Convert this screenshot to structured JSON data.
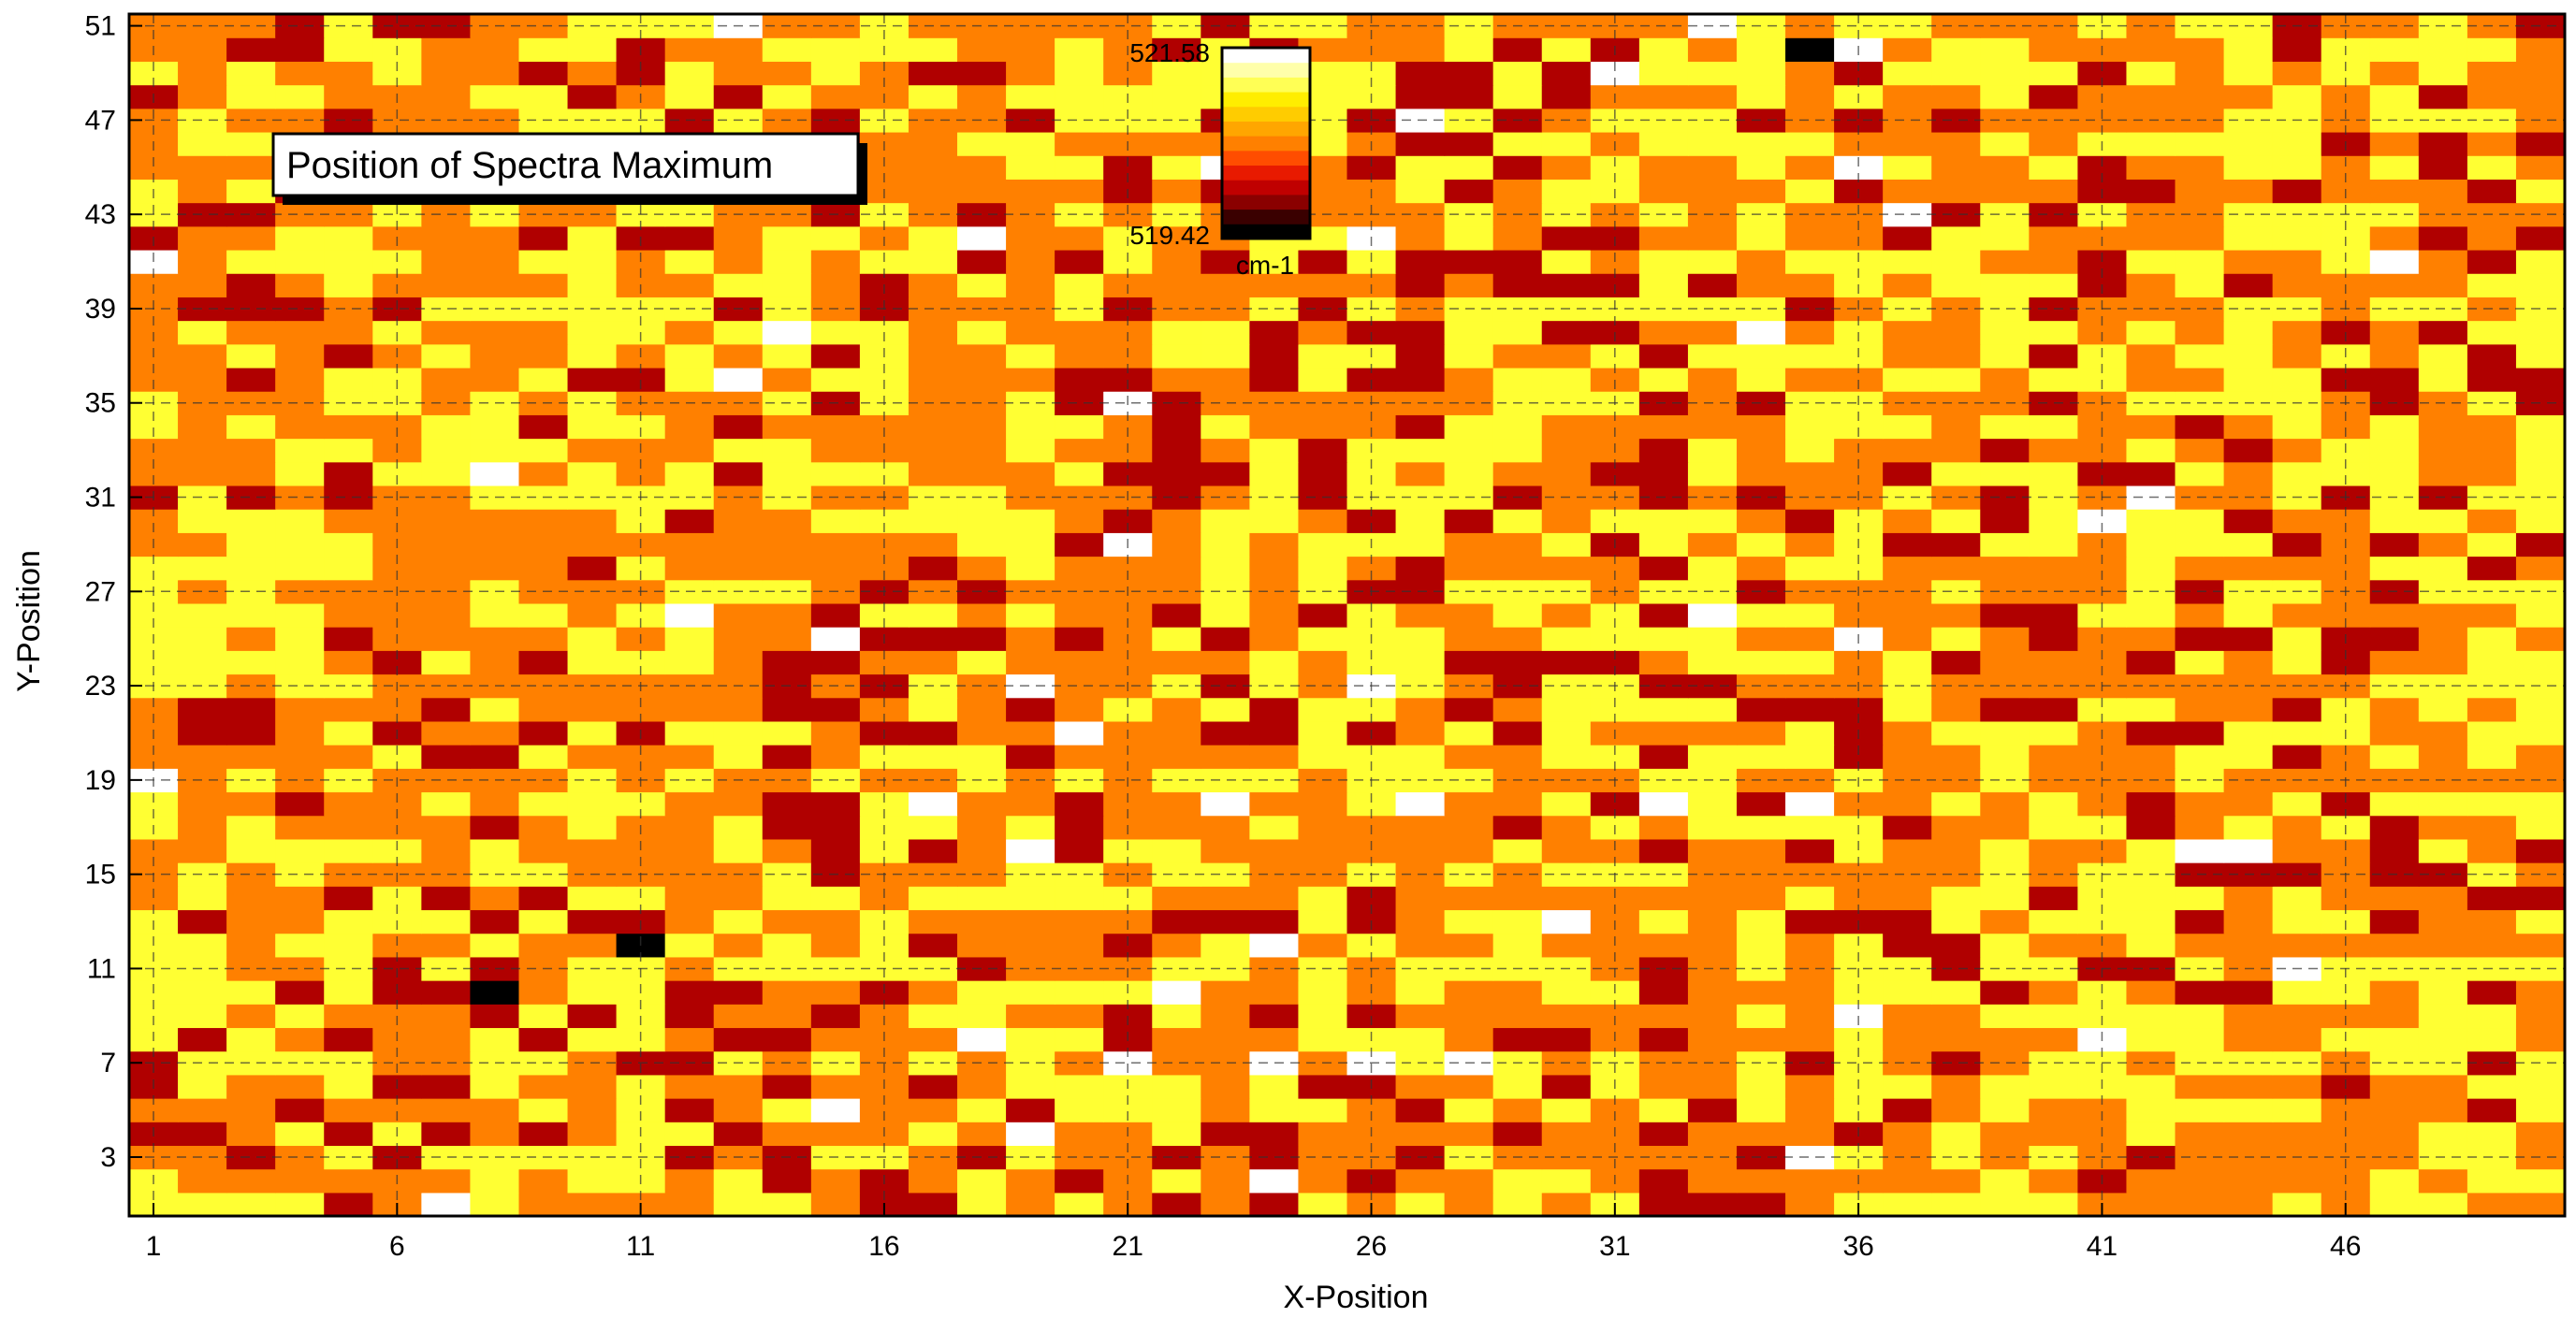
{
  "chart_data": {
    "type": "heatmap",
    "title": "Position of Spectra Maximum",
    "xlabel": "X-Position",
    "ylabel": "Y-Position",
    "x_range": [
      1,
      50
    ],
    "y_range": [
      1,
      51
    ],
    "x_ticks": [
      1,
      6,
      11,
      16,
      21,
      26,
      31,
      36,
      41,
      46
    ],
    "y_ticks": [
      3,
      7,
      11,
      15,
      19,
      23,
      27,
      31,
      35,
      39,
      43,
      47,
      51
    ],
    "grid": true,
    "colorbar": {
      "min": 519.42,
      "max": 521.58,
      "min_label": "519.42",
      "max_label": "521.58",
      "unit": "cm-1",
      "colors": [
        "#000000",
        "#3a0000",
        "#8a0000",
        "#c00000",
        "#e81a00",
        "#ff4d00",
        "#ff8000",
        "#ffa600",
        "#ffcc00",
        "#ffee00",
        "#ffff55",
        "#ffffaa",
        "#ffffff"
      ]
    },
    "palette": {
      "black": "#000000",
      "dark_red": "#b00000",
      "orange": "#ff8000",
      "yellow": "#ffff33",
      "white": "#ffffff"
    },
    "black_pixels": [
      [
        35,
        50
      ],
      [
        11,
        12
      ],
      [
        8,
        10
      ]
    ],
    "white_pixels": [
      [
        13,
        51
      ],
      [
        33,
        51
      ],
      [
        31,
        49
      ],
      [
        36,
        50
      ],
      [
        27,
        47
      ],
      [
        36,
        45
      ],
      [
        23,
        45
      ],
      [
        37,
        43
      ],
      [
        18,
        42
      ],
      [
        26,
        42
      ],
      [
        1,
        41
      ],
      [
        47,
        41
      ],
      [
        14,
        38
      ],
      [
        34,
        38
      ],
      [
        13,
        36
      ],
      [
        21,
        35
      ],
      [
        8,
        32
      ],
      [
        42,
        31
      ],
      [
        41,
        30
      ],
      [
        21,
        29
      ],
      [
        12,
        26
      ],
      [
        33,
        26
      ],
      [
        15,
        25
      ],
      [
        36,
        25
      ],
      [
        19,
        23
      ],
      [
        26,
        23
      ],
      [
        20,
        21
      ],
      [
        1,
        19
      ],
      [
        17,
        18
      ],
      [
        23,
        18
      ],
      [
        27,
        18
      ],
      [
        32,
        18
      ],
      [
        35,
        18
      ],
      [
        19,
        16
      ],
      [
        43,
        16
      ],
      [
        44,
        16
      ],
      [
        30,
        13
      ],
      [
        24,
        12
      ],
      [
        45,
        11
      ],
      [
        22,
        10
      ],
      [
        36,
        9
      ],
      [
        18,
        8
      ],
      [
        41,
        8
      ],
      [
        21,
        7
      ],
      [
        24,
        7
      ],
      [
        26,
        7
      ],
      [
        28,
        7
      ],
      [
        15,
        5
      ],
      [
        19,
        4
      ],
      [
        35,
        3
      ],
      [
        7,
        1
      ],
      [
        24,
        2
      ]
    ],
    "values_note": "Approximately 2550 pixels (50 x 51 grid); each cell value lies between 519.42 and 521.58 cm-1"
  }
}
